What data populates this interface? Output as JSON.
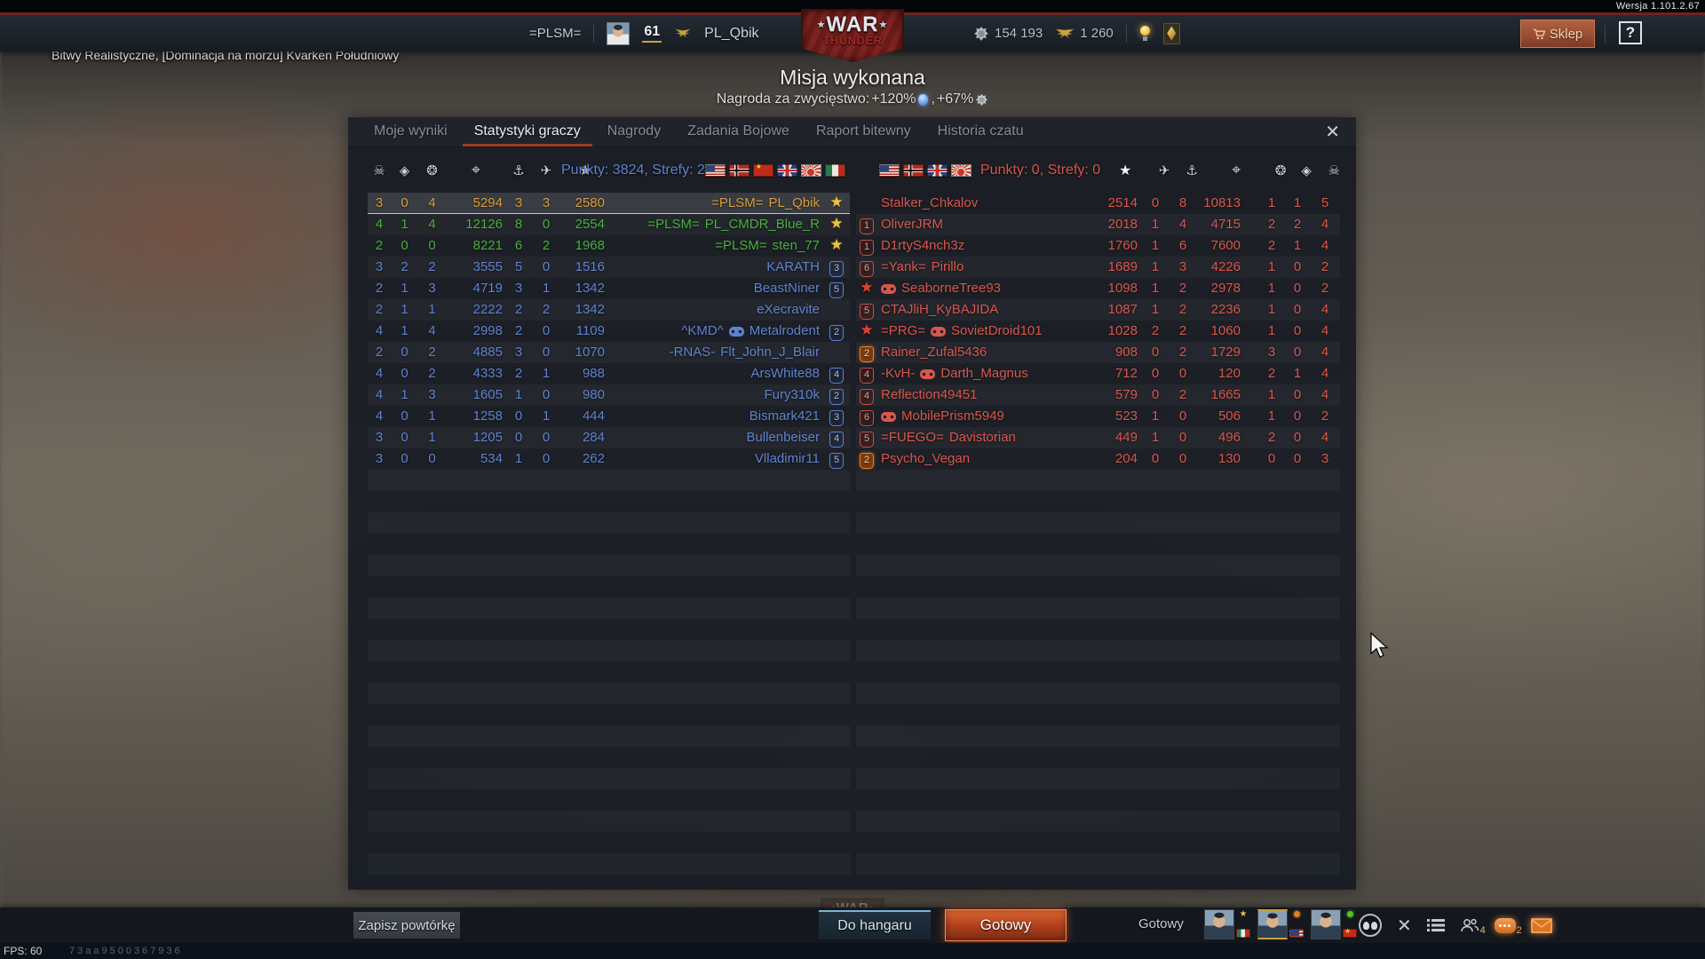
{
  "version_label": "Wersja 1.101.2.67",
  "top_bar": {
    "clan": "=PLSM=",
    "level": "61",
    "player": "PL_Qbik",
    "silver": "154 193",
    "gold": "1 260",
    "shop_label": "Sklep",
    "help_label": "?"
  },
  "logo": {
    "top": "WAR",
    "bottom": "THUNDER"
  },
  "battle_info": "Bitwy Realistyczne, [Dominacja na morzu] Kvarken Południowy",
  "mission": {
    "title": "Misja wykonana",
    "reward_prefix": "Nagroda za zwycięstwo: ",
    "reward_rp": "+120%",
    "reward_mid": ", ",
    "reward_sl": "+67%"
  },
  "panel": {
    "close_glyph": "✕",
    "tabs": [
      {
        "label": "Moje wyniki",
        "active": false
      },
      {
        "label": "Statystyki graczy",
        "active": true
      },
      {
        "label": "Nagrody",
        "active": false
      },
      {
        "label": "Zadania Bojowe",
        "active": false
      },
      {
        "label": "Raport bitewny",
        "active": false
      },
      {
        "label": "Historia czatu",
        "active": false
      }
    ]
  },
  "icon_glyphs": {
    "skull": "☠",
    "diamond": "◈",
    "wreath": "❂",
    "target": "⌖",
    "ship": "⚓",
    "plane": "✈",
    "star": "★"
  },
  "colors": {
    "self": "#d99b3b",
    "squad": "#46b13b",
    "ally": "#5d82cf",
    "enemy": "#d8564c",
    "accent_red": "#a03a2a"
  },
  "left_table": {
    "summary": "Punkty: 3824, Strefy: 2",
    "flags": [
      "usa",
      "germany",
      "ussr",
      "uk",
      "japan",
      "italy"
    ],
    "rows": [
      {
        "k": "3",
        "a": "0",
        "w": "4",
        "dmg": "5294",
        "sh": "3",
        "pl": "3",
        "sc": "2580",
        "clan": "=PLSM=",
        "name": "PL_Qbik",
        "gp": false,
        "badge": "star-gold",
        "num": "",
        "style": "self"
      },
      {
        "k": "4",
        "a": "1",
        "w": "4",
        "dmg": "12126",
        "sh": "8",
        "pl": "0",
        "sc": "2554",
        "clan": "=PLSM=",
        "name": "PL_CMDR_Blue_R",
        "gp": false,
        "badge": "star-gold",
        "num": "",
        "style": "squad"
      },
      {
        "k": "2",
        "a": "0",
        "w": "0",
        "dmg": "8221",
        "sh": "6",
        "pl": "2",
        "sc": "1968",
        "clan": "=PLSM=",
        "name": "sten_77",
        "gp": false,
        "badge": "star-gold",
        "num": "",
        "style": "squad"
      },
      {
        "k": "3",
        "a": "2",
        "w": "2",
        "dmg": "3555",
        "sh": "5",
        "pl": "0",
        "sc": "1516",
        "clan": "",
        "name": "KARATH",
        "gp": false,
        "badge": "shield-blue",
        "num": "3",
        "style": "ally"
      },
      {
        "k": "2",
        "a": "1",
        "w": "3",
        "dmg": "4719",
        "sh": "3",
        "pl": "1",
        "sc": "1342",
        "clan": "",
        "name": "BeastNiner",
        "gp": false,
        "badge": "shield-blue",
        "num": "5",
        "style": "ally"
      },
      {
        "k": "2",
        "a": "1",
        "w": "1",
        "dmg": "2222",
        "sh": "2",
        "pl": "2",
        "sc": "1342",
        "clan": "",
        "name": "eXecravite",
        "gp": false,
        "badge": null,
        "num": "",
        "style": "ally"
      },
      {
        "k": "4",
        "a": "1",
        "w": "4",
        "dmg": "2998",
        "sh": "2",
        "pl": "0",
        "sc": "1109",
        "clan": "^KMD^",
        "name": "Metalrodent",
        "gp": true,
        "badge": "shield-blue",
        "num": "2",
        "style": "ally"
      },
      {
        "k": "2",
        "a": "0",
        "w": "2",
        "dmg": "4885",
        "sh": "3",
        "pl": "0",
        "sc": "1070",
        "clan": "-RNAS-",
        "name": "Flt_John_J_Blair",
        "gp": false,
        "badge": null,
        "num": "",
        "style": "ally"
      },
      {
        "k": "4",
        "a": "0",
        "w": "2",
        "dmg": "4333",
        "sh": "2",
        "pl": "1",
        "sc": "988",
        "clan": "",
        "name": "ArsWhite88",
        "gp": false,
        "badge": "shield-blue",
        "num": "4",
        "style": "ally"
      },
      {
        "k": "4",
        "a": "1",
        "w": "3",
        "dmg": "1605",
        "sh": "1",
        "pl": "0",
        "sc": "980",
        "clan": "",
        "name": "Fury310k",
        "gp": false,
        "badge": "shield-blue",
        "num": "2",
        "style": "ally"
      },
      {
        "k": "4",
        "a": "0",
        "w": "1",
        "dmg": "1258",
        "sh": "0",
        "pl": "1",
        "sc": "444",
        "clan": "",
        "name": "Bismark421",
        "gp": false,
        "badge": "shield-blue",
        "num": "3",
        "style": "ally"
      },
      {
        "k": "3",
        "a": "0",
        "w": "1",
        "dmg": "1205",
        "sh": "0",
        "pl": "0",
        "sc": "284",
        "clan": "",
        "name": "Bullenbeiser",
        "gp": false,
        "badge": "shield-blue",
        "num": "4",
        "style": "ally"
      },
      {
        "k": "3",
        "a": "0",
        "w": "0",
        "dmg": "534",
        "sh": "1",
        "pl": "0",
        "sc": "262",
        "clan": "",
        "name": "Vlladimir11",
        "gp": false,
        "badge": "shield-blue",
        "num": "5",
        "style": "ally"
      }
    ]
  },
  "right_table": {
    "summary": "Punkty: 0, Strefy: 0",
    "flags": [
      "usa",
      "germany",
      "uk",
      "japan"
    ],
    "rows": [
      {
        "sc": "2514",
        "pl": "0",
        "sh": "8",
        "dmg": "10813",
        "w": "1",
        "a": "1",
        "k": "5",
        "clan": "",
        "name": "Stalker_Chkalov",
        "gp": false,
        "badge": null,
        "num": ""
      },
      {
        "sc": "2018",
        "pl": "1",
        "sh": "4",
        "dmg": "4715",
        "w": "2",
        "a": "2",
        "k": "4",
        "clan": "",
        "name": "OliverJRM",
        "gp": false,
        "badge": "shield-red",
        "num": "1"
      },
      {
        "sc": "1760",
        "pl": "1",
        "sh": "6",
        "dmg": "7600",
        "w": "2",
        "a": "1",
        "k": "4",
        "clan": "",
        "name": "D1rtyS4nch3z",
        "gp": false,
        "badge": "shield-red",
        "num": "1"
      },
      {
        "sc": "1689",
        "pl": "1",
        "sh": "3",
        "dmg": "4226",
        "w": "1",
        "a": "0",
        "k": "2",
        "clan": "=Yank=",
        "name": "Pirillo",
        "gp": false,
        "badge": "shield-red",
        "num": "6"
      },
      {
        "sc": "1098",
        "pl": "1",
        "sh": "2",
        "dmg": "2978",
        "w": "1",
        "a": "0",
        "k": "2",
        "clan": "",
        "name": "SeaborneTree93",
        "gp": true,
        "badge": "star-red",
        "num": ""
      },
      {
        "sc": "1087",
        "pl": "1",
        "sh": "2",
        "dmg": "2236",
        "w": "1",
        "a": "0",
        "k": "4",
        "clan": "",
        "name": "CTAJliH_KyBAJIDA",
        "gp": false,
        "badge": "shield-red",
        "num": "5"
      },
      {
        "sc": "1028",
        "pl": "2",
        "sh": "2",
        "dmg": "1060",
        "w": "1",
        "a": "0",
        "k": "4",
        "clan": "=PRG=",
        "name": "SovietDroid101",
        "gp": true,
        "badge": "star-red",
        "num": ""
      },
      {
        "sc": "908",
        "pl": "0",
        "sh": "2",
        "dmg": "1729",
        "w": "3",
        "a": "0",
        "k": "4",
        "clan": "",
        "name": "Rainer_Zufal5436",
        "gp": false,
        "badge": "shield-orange",
        "num": "2"
      },
      {
        "sc": "712",
        "pl": "0",
        "sh": "0",
        "dmg": "120",
        "w": "2",
        "a": "1",
        "k": "4",
        "clan": "-KvH-",
        "name": "Darth_Magnus",
        "gp": true,
        "badge": "shield-red",
        "num": "4"
      },
      {
        "sc": "579",
        "pl": "0",
        "sh": "2",
        "dmg": "1665",
        "w": "1",
        "a": "0",
        "k": "4",
        "clan": "",
        "name": "Reflection49451",
        "gp": false,
        "badge": "shield-red",
        "num": "4"
      },
      {
        "sc": "523",
        "pl": "1",
        "sh": "0",
        "dmg": "506",
        "w": "1",
        "a": "0",
        "k": "2",
        "clan": "",
        "name": "MobilePrism5949",
        "gp": true,
        "badge": "shield-red",
        "num": "6"
      },
      {
        "sc": "449",
        "pl": "1",
        "sh": "0",
        "dmg": "496",
        "w": "2",
        "a": "0",
        "k": "4",
        "clan": "=FUEGO=",
        "name": "Davistorian",
        "gp": false,
        "badge": "shield-red",
        "num": "5"
      },
      {
        "sc": "204",
        "pl": "0",
        "sh": "0",
        "dmg": "130",
        "w": "0",
        "a": "0",
        "k": "3",
        "clan": "",
        "name": "Psycho_Vegan",
        "gp": false,
        "badge": "shield-orange",
        "num": "2"
      }
    ]
  },
  "bottom_bar": {
    "save_replay_label": "Zapisz powtórkę",
    "to_hangar_label": "Do hangaru",
    "ready_label": "Gotowy",
    "ready_status": "Gotowy",
    "members_count": "4",
    "chat_count": "2",
    "avatars": [
      {
        "flag": "italy",
        "status": "star"
      },
      {
        "flag": "usa",
        "status": "orange",
        "selected": true
      },
      {
        "flag": "china",
        "status": "green"
      }
    ]
  },
  "footer": {
    "fps": "FPS: 60",
    "session_id": "73aa9500367936"
  }
}
